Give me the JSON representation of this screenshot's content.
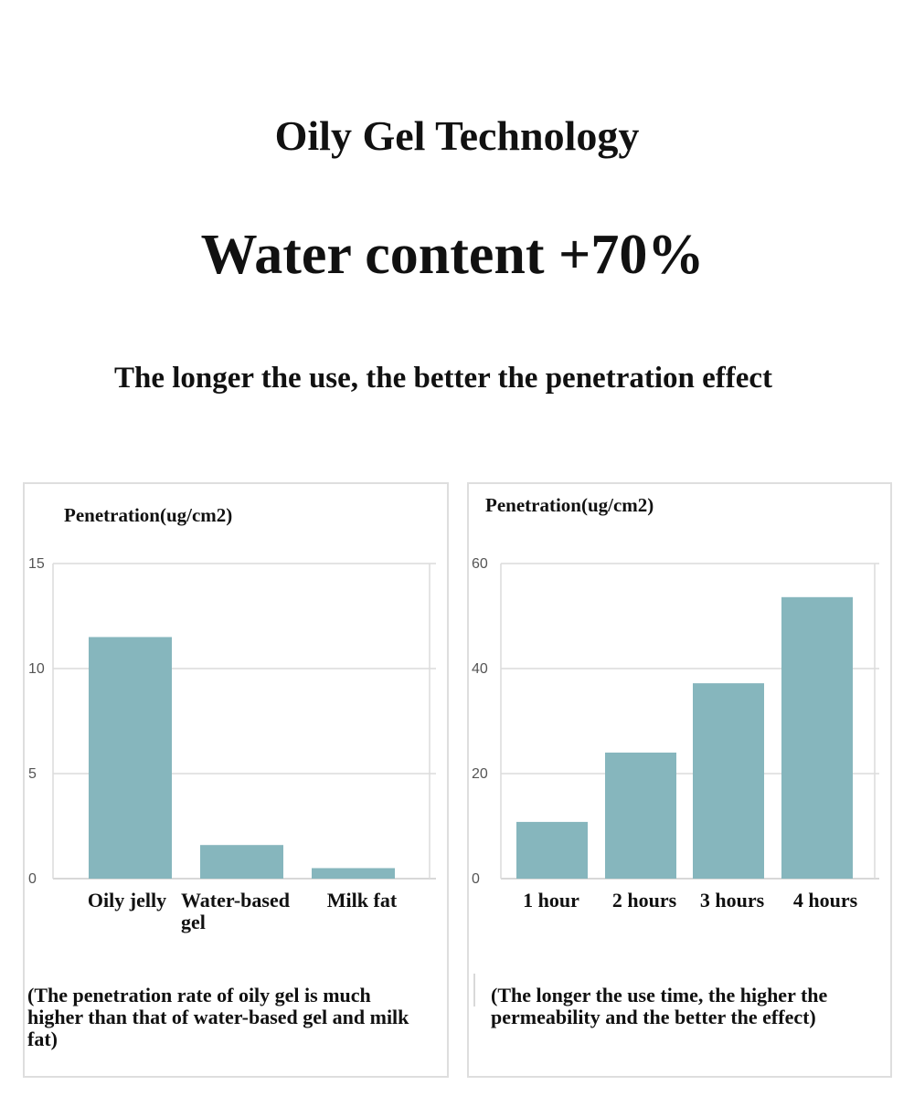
{
  "header": {
    "title": "Oily Gel Technology",
    "headline": "Water content +70%",
    "subtitle": "The longer the use, the better the penetration effect"
  },
  "colors": {
    "bar": "#86b6bd",
    "grid": "#dcdcdc",
    "axis": "#cccccc"
  },
  "chart_data": [
    {
      "type": "bar",
      "ylabel": "Penetration(ug/cm2)",
      "categories": [
        "Oily jelly",
        "Water-based gel",
        "Milk fat"
      ],
      "values": [
        11.5,
        1.6,
        0.5
      ],
      "ylim": [
        0,
        15
      ],
      "yticks": [
        0,
        5,
        10,
        15
      ],
      "grid": true,
      "caption": "(The penetration rate of oily gel is much higher than that of water-based gel and milk fat)"
    },
    {
      "type": "bar",
      "ylabel": "Penetration(ug/cm2)",
      "categories": [
        "1 hour",
        "2 hours",
        "3 hours",
        "4 hours"
      ],
      "values": [
        10.8,
        24,
        37.2,
        53.6
      ],
      "ylim": [
        0,
        60
      ],
      "yticks": [
        0,
        20,
        40,
        60
      ],
      "grid": true,
      "caption": "(The longer the use time, the higher the permeability and the better the effect)"
    }
  ]
}
